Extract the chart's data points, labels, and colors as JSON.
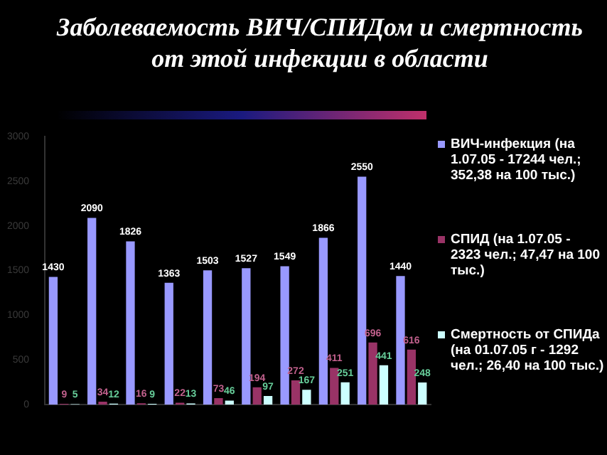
{
  "chart_data": {
    "type": "bar",
    "title": "Заболеваемость ВИЧ/СПИДом и смертность от этой инфекции в области",
    "categories": [
      null,
      null,
      null,
      null,
      null,
      null,
      null,
      null,
      null,
      null
    ],
    "series": [
      {
        "name": "ВИЧ-инфекция (на 1.07.05 - 17244 чел.; 352,38 на 100 тыс.)",
        "color": "#9999ff",
        "values": [
          1430,
          2090,
          1826,
          1363,
          1503,
          1527,
          1549,
          1866,
          2550,
          1440
        ]
      },
      {
        "name": "СПИД (на 1.07.05 - 2323 чел.; 47,47 на 100 тыс.)",
        "color": "#993366",
        "values": [
          9,
          34,
          16,
          22,
          73,
          194,
          272,
          411,
          696,
          616
        ]
      },
      {
        "name": "Смертность от СПИДа (на 01.07.05 г - 1292 чел.; 26,40 на 100 тыс.)",
        "color": "#ccffff",
        "values": [
          5,
          12,
          9,
          13,
          46,
          97,
          167,
          251,
          441,
          248
        ]
      }
    ],
    "ylim": [
      0,
      3000
    ],
    "yticks": [
      0,
      500,
      1000,
      1500,
      2000,
      2500,
      3000
    ],
    "data_labels": true,
    "grid": false,
    "legend": "right"
  }
}
